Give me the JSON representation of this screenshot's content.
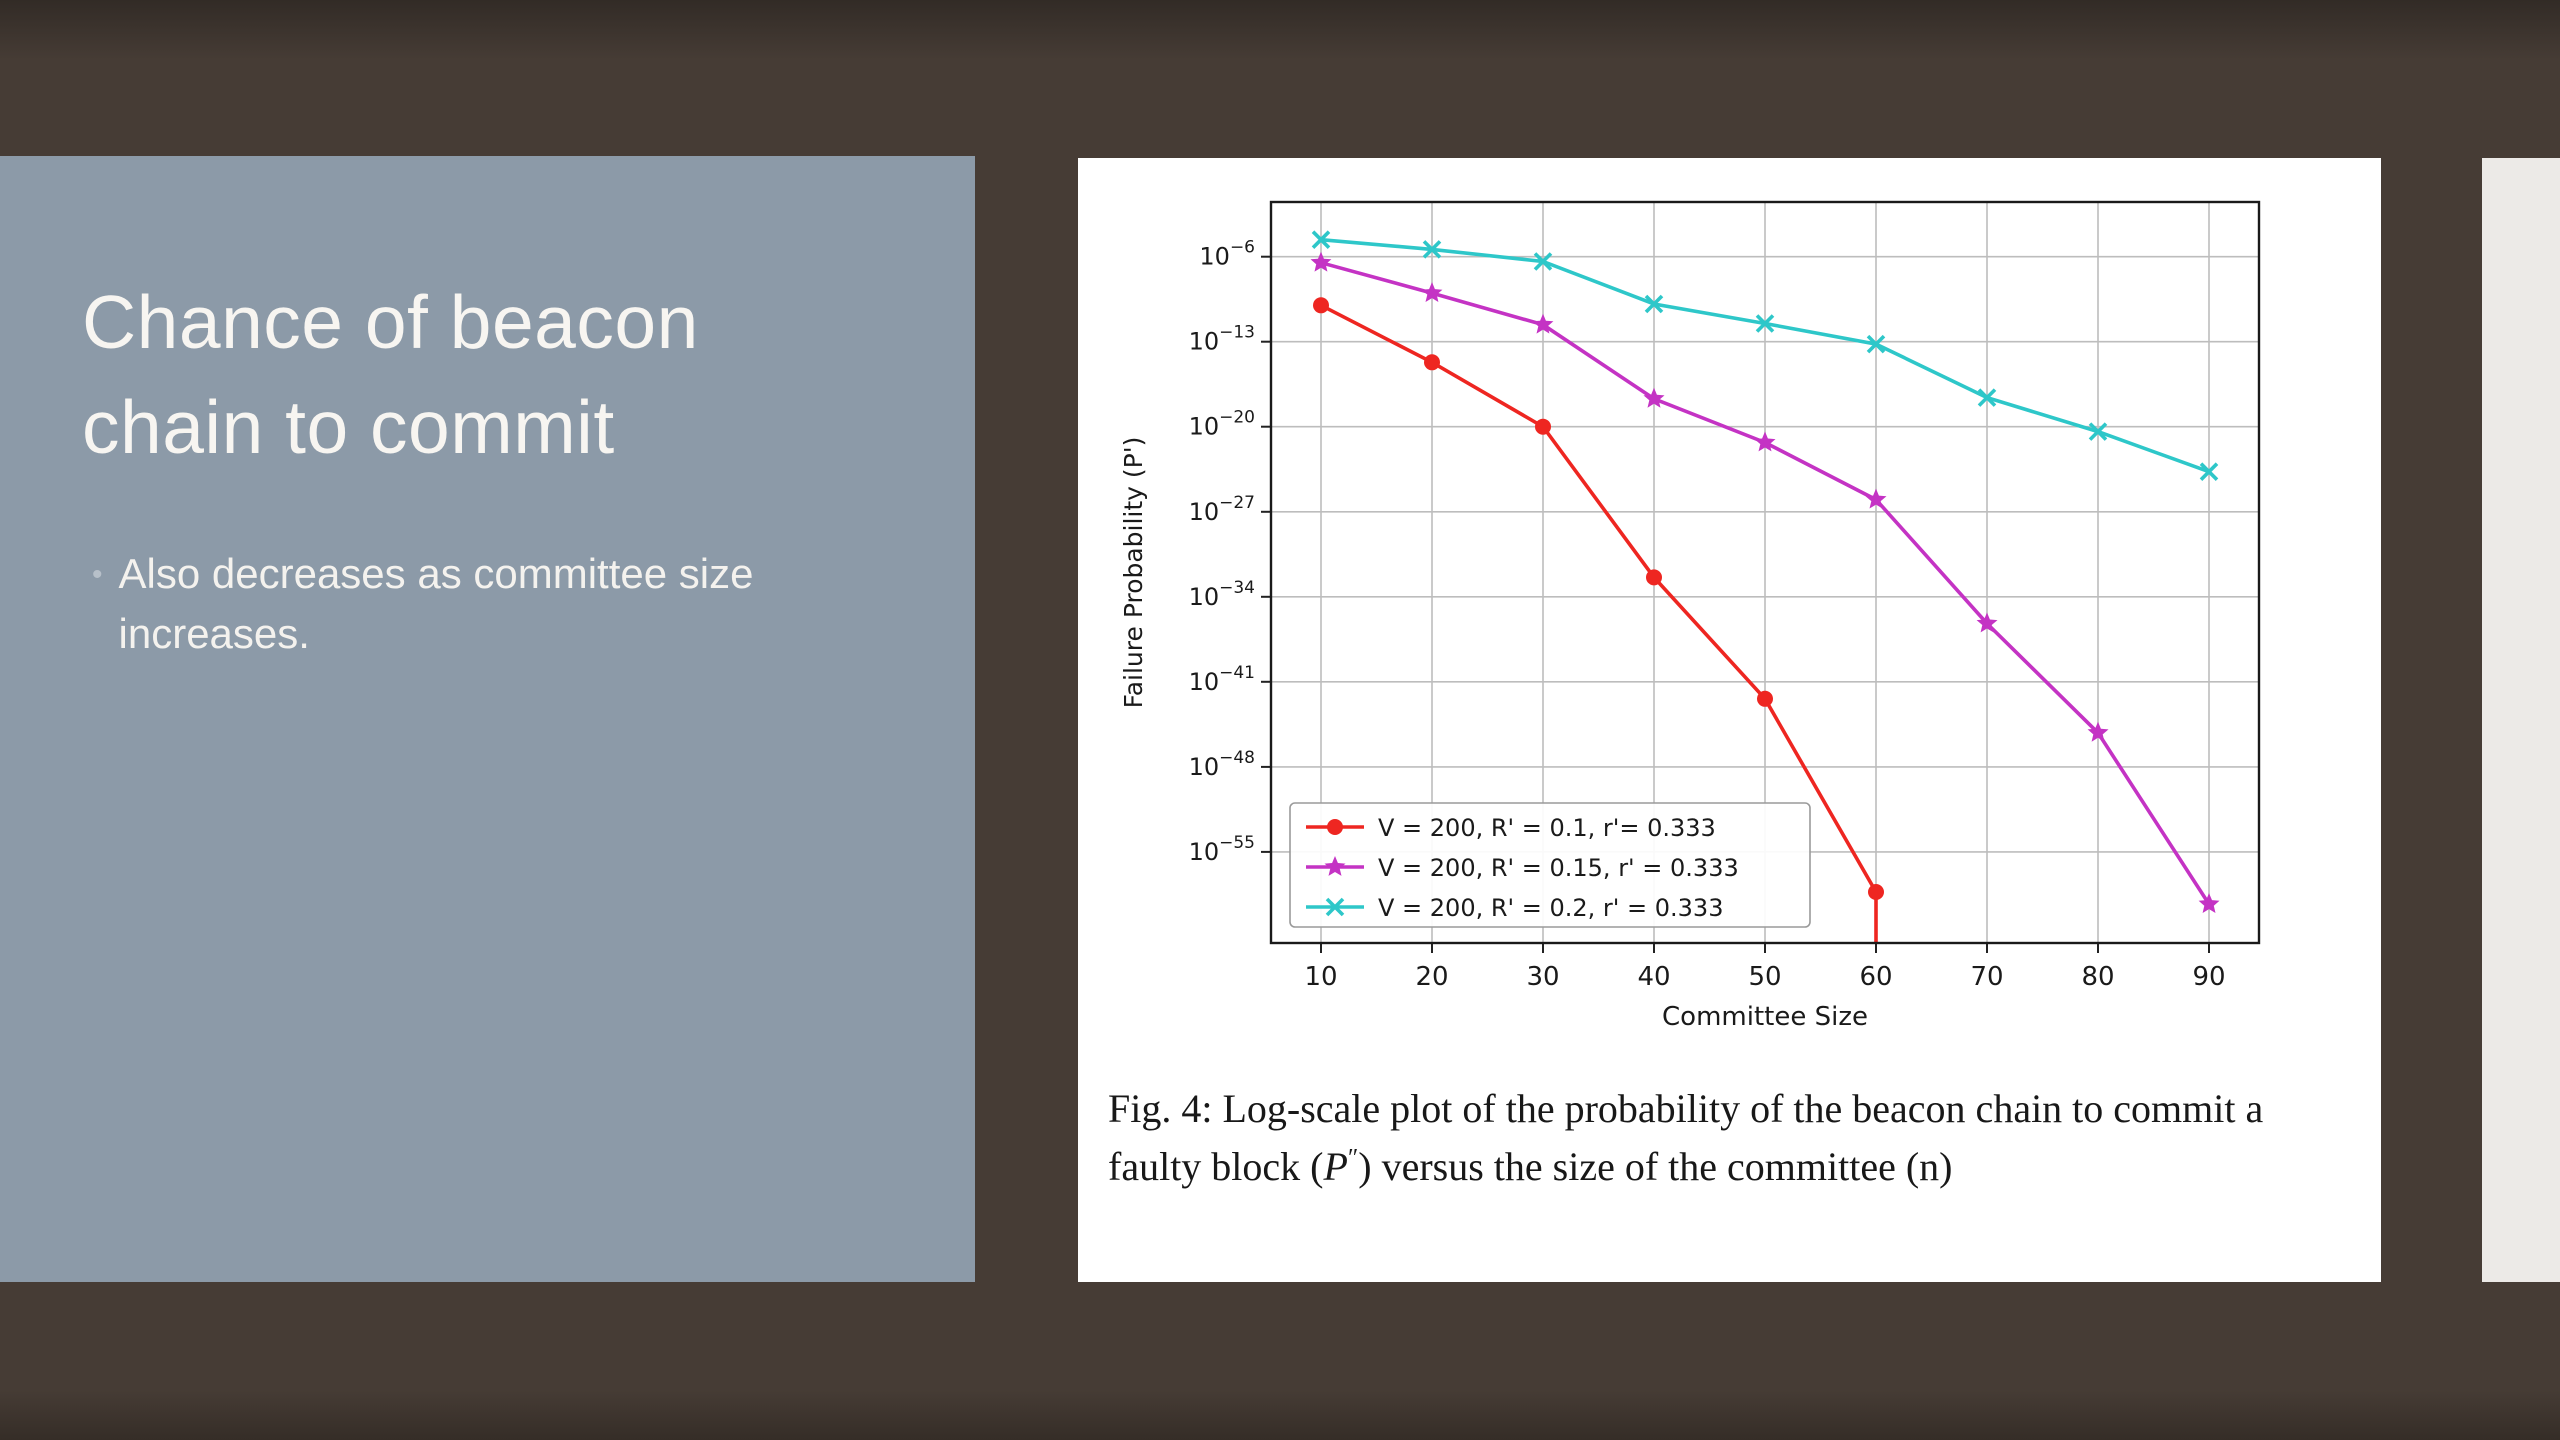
{
  "slide": {
    "title_lines": [
      "Chance of beacon",
      "chain to commit"
    ],
    "bullet_icon": "•",
    "bullet": "Also decreases as committee size increases.",
    "colors": {
      "background": "#463c35",
      "title_panel": "#8c9aa8",
      "title_text": "#f7f5f1",
      "figure_panel": "#ffffff"
    }
  },
  "figure": {
    "caption": {
      "part1": "Fig. 4: Log-scale plot of the probability of the beacon chain to commit a faulty block (",
      "symbol": "P",
      "symbol_sup": "″",
      "part2": ") versus the size of the committee (n)"
    }
  },
  "chart_data": {
    "type": "line",
    "title": "",
    "xlabel": "Committee Size",
    "ylabel": "Failure Probability (P')",
    "x_ticks": [
      10,
      20,
      30,
      40,
      50,
      60,
      70,
      80,
      90
    ],
    "y_tick_exponents": [
      -6,
      -13,
      -20,
      -27,
      -34,
      -41,
      -48,
      -55
    ],
    "x_range": [
      5.5,
      94.5
    ],
    "y_exp_range": [
      -1.5,
      -62.5
    ],
    "y_scale": "log",
    "grid": true,
    "legend_position": "lower left",
    "series": [
      {
        "name": "V = 200, R' = 0.1,  r'= 0.333",
        "color": "#ee2621",
        "marker": "circle",
        "x": [
          10,
          20,
          30,
          40,
          50,
          60
        ],
        "log10_p": [
          -10,
          -14.7,
          -20,
          -32.4,
          -42.4,
          -58.3
        ],
        "drops_to_zero_after_last": true
      },
      {
        "name": "V = 200, R' = 0.15, r' = 0.333",
        "color": "#c433c4",
        "marker": "star",
        "x": [
          10,
          20,
          30,
          40,
          50,
          60,
          70,
          80,
          90
        ],
        "log10_p": [
          -6.5,
          -9.0,
          -11.6,
          -17.7,
          -21.3,
          -26.0,
          -36.2,
          -45.2,
          -59.3
        ]
      },
      {
        "name": "V = 200, R' = 0.2,  r' = 0.333",
        "color": "#2ec7c9",
        "marker": "x",
        "x": [
          10,
          20,
          30,
          40,
          50,
          60,
          70,
          80,
          90
        ],
        "log10_p": [
          -4.6,
          -5.4,
          -6.4,
          -9.9,
          -11.5,
          -13.2,
          -17.6,
          -20.4,
          -23.7
        ]
      }
    ]
  }
}
